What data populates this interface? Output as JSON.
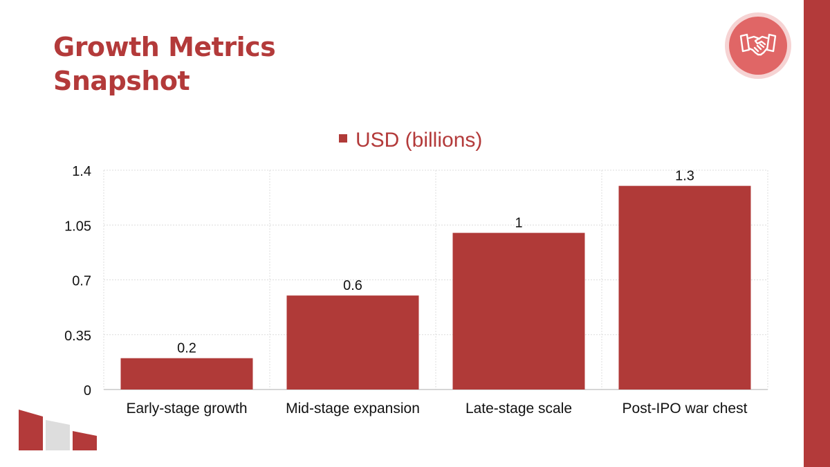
{
  "slide": {
    "title_line1": "Growth Metrics",
    "title_line2": "Snapshot",
    "accent_color": "#b33a3a",
    "badge_icon": "handshake-icon"
  },
  "chart_data": {
    "type": "bar",
    "categories": [
      "Early-stage growth",
      "Mid-stage expansion",
      "Late-stage scale",
      "Post-IPO war chest"
    ],
    "series": [
      {
        "name": "USD (billions)",
        "values": [
          0.2,
          0.6,
          1,
          1.3
        ],
        "color": "#b03a38"
      }
    ],
    "data_labels": [
      "0.2",
      "0.6",
      "1",
      "1.3"
    ],
    "y_ticks": [
      0,
      0.35,
      0.7,
      1.05,
      1.4
    ],
    "y_tick_labels": [
      "0",
      "0.35",
      "0.7",
      "1.05",
      "1.4"
    ],
    "ylim": [
      0,
      1.4
    ],
    "title": "",
    "xlabel": "",
    "ylabel": "",
    "legend": "top-center",
    "grid": true
  }
}
